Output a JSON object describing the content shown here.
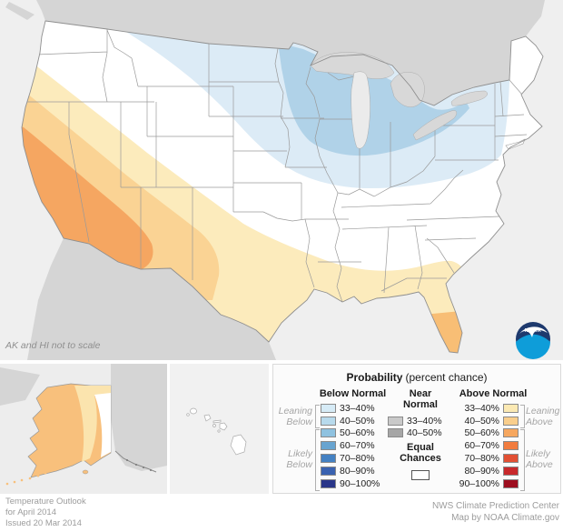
{
  "note": "AK and HI not to scale",
  "logo": {
    "text": "NOAA"
  },
  "legend": {
    "title": "Probability",
    "title_suffix": "(percent chance)",
    "columns": {
      "below": {
        "header": "Below Normal",
        "rows": [
          {
            "label": "33–40%",
            "color": "#D6EBF6"
          },
          {
            "label": "40–50%",
            "color": "#B8DAEC"
          },
          {
            "label": "50–60%",
            "color": "#8FC2E0"
          },
          {
            "label": "60–70%",
            "color": "#68A4D0"
          },
          {
            "label": "70–80%",
            "color": "#4481C2"
          },
          {
            "label": "80–90%",
            "color": "#3A62B0"
          },
          {
            "label": "90–100%",
            "color": "#2A3689"
          }
        ]
      },
      "near": {
        "header": [
          "Near",
          "Normal"
        ],
        "rows": [
          {
            "label": "33–40%",
            "color": "#C9C9C9"
          },
          {
            "label": "40–50%",
            "color": "#A6A6A6"
          }
        ]
      },
      "above": {
        "header": "Above Normal",
        "rows": [
          {
            "label": "33–40%",
            "color": "#FBE9B3"
          },
          {
            "label": "40–50%",
            "color": "#F9CE8C"
          },
          {
            "label": "50–60%",
            "color": "#F6A75F"
          },
          {
            "label": "60–70%",
            "color": "#F17C3F"
          },
          {
            "label": "70–80%",
            "color": "#E25034"
          },
          {
            "label": "80–90%",
            "color": "#C8292C"
          },
          {
            "label": "90–100%",
            "color": "#9D0E1F"
          }
        ]
      },
      "equal": {
        "label": [
          "Equal",
          "Chances"
        ],
        "color": "#FFFFFF"
      }
    },
    "brackets": {
      "leaning_below": [
        "Leaning",
        "Below"
      ],
      "likely_below": [
        "Likely",
        "Below"
      ],
      "leaning_above": [
        "Leaning",
        "Above"
      ],
      "likely_above": [
        "Likely",
        "Above"
      ]
    }
  },
  "footer": {
    "left_lines": [
      "Temperature Outlook",
      "for April 2014",
      "Issued 20 Mar 2014"
    ],
    "right_lines": [
      "NWS Climate Prediction Center",
      "Map by NOAA Climate.gov"
    ]
  },
  "map_colors": {
    "ocean": "#EFEFEF",
    "neighbor_land": "#D5D5D5",
    "lake": "#D8D8D8",
    "lake_michigan": "#EBEBEB",
    "us_fill": "#FFFFFF",
    "state_border": "#9A9A9A",
    "above_33_40": "#FCEBBC",
    "above_40_50": "#FAD394",
    "above_50_60": "#F5A661",
    "florida_south_40_50": "#F8BE75",
    "below_33_40": "#DCEBF6",
    "below_40_50": "#B0D2E8",
    "alaska_40_50": "#F8C07C",
    "alaska_33_40": "#FBE4AE",
    "logo_dark_blue": "#1E3A6E",
    "logo_light_blue": "#0E9DD9"
  }
}
